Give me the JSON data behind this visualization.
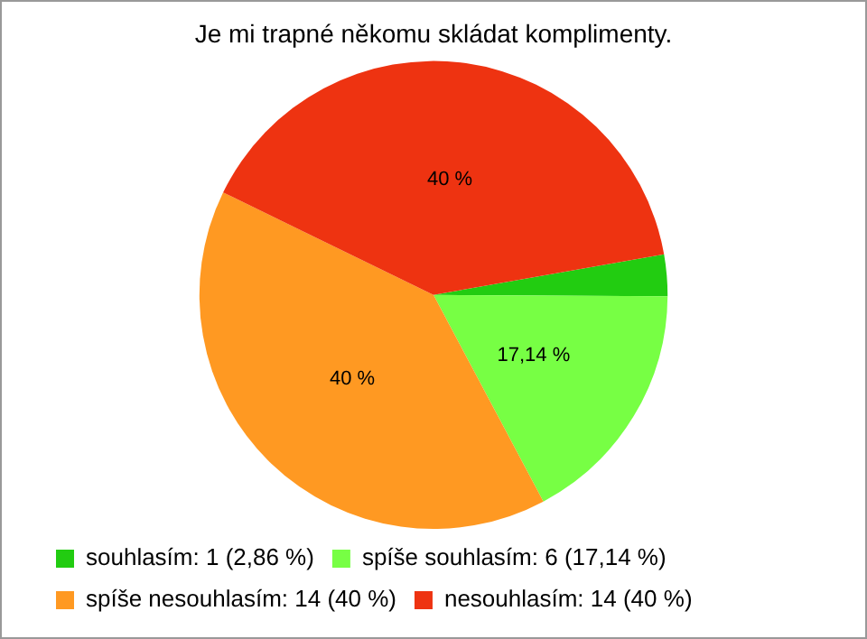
{
  "chart_data": {
    "type": "pie",
    "title": "Je mi trapné někomu skládat komplimenty.",
    "categories": [
      "souhlasím: 1 (2,86 %)",
      "spíše souhlasím: 6 (17,14 %)",
      "spíše nesouhlasím: 14 (40 %)",
      "nesouhlasím: 14 (40 %)"
    ],
    "values": [
      2.86,
      17.14,
      40,
      40
    ],
    "colors": [
      "#22cc11",
      "#77ff44",
      "#ff9922",
      "#ee3311"
    ],
    "value_labels": [
      null,
      "17,14 %",
      "40 %",
      "40 %"
    ],
    "legend": "bottom left"
  }
}
